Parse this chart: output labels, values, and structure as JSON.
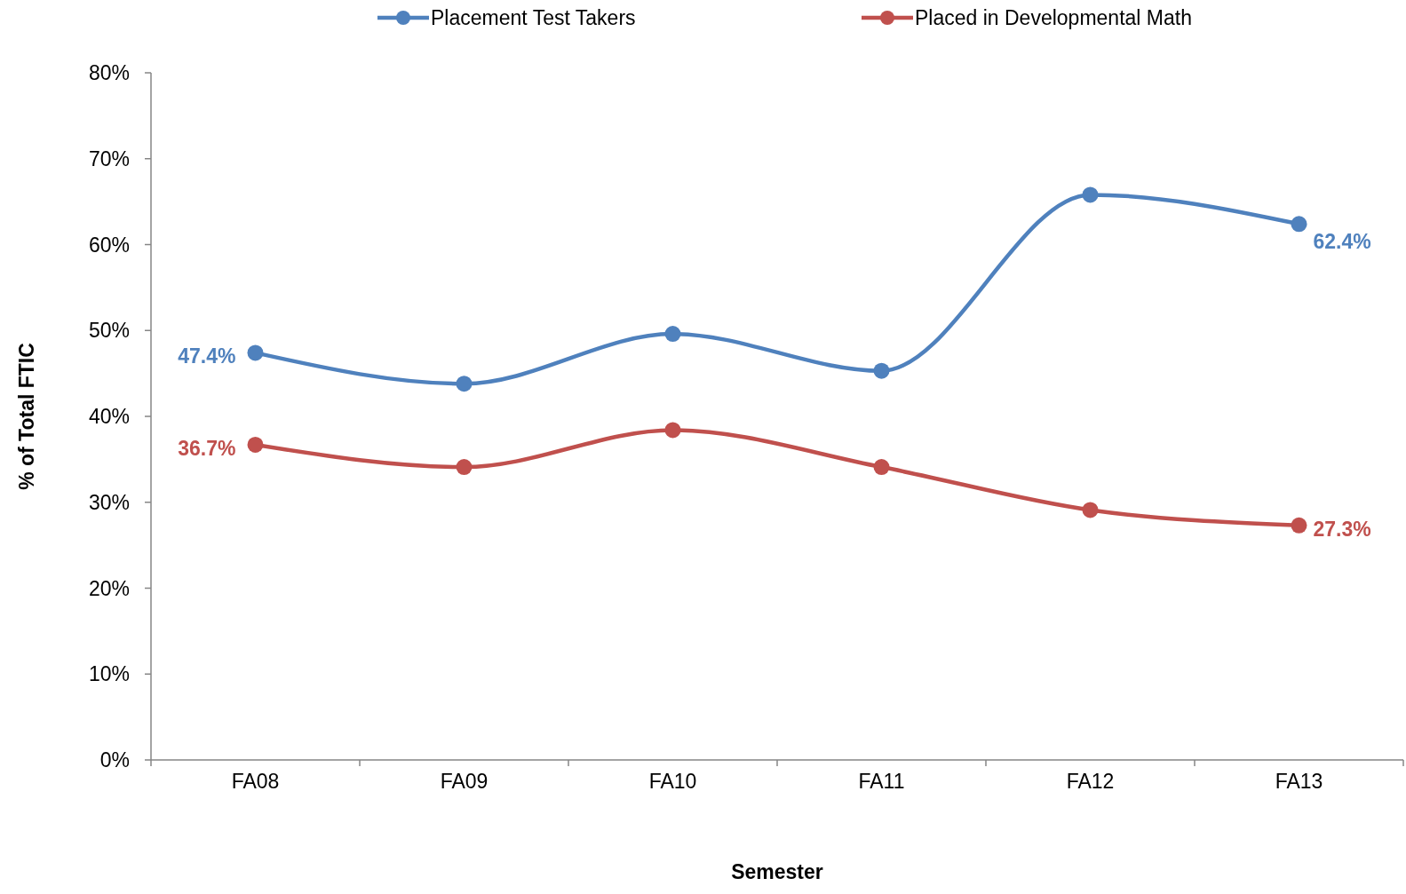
{
  "chart_data": {
    "type": "line",
    "xlabel": "Semester",
    "ylabel": "% of Total FTIC",
    "categories": [
      "FA08",
      "FA09",
      "FA10",
      "FA11",
      "FA12",
      "FA13"
    ],
    "series": [
      {
        "name": "Placement Test Takers",
        "color": "#4f81bd",
        "values": [
          47.4,
          43.8,
          49.6,
          45.3,
          65.8,
          62.4
        ],
        "value_labels": [
          "47.4%",
          null,
          null,
          null,
          null,
          "62.4%"
        ]
      },
      {
        "name": "Placed in Developmental Math",
        "color": "#c0504d",
        "values": [
          36.7,
          34.1,
          38.4,
          34.1,
          29.1,
          27.3
        ],
        "value_labels": [
          "36.7%",
          null,
          null,
          null,
          null,
          "27.3%"
        ]
      }
    ],
    "ylim": [
      0,
      80
    ],
    "yticks": [
      {
        "value": 0,
        "label": "0%"
      },
      {
        "value": 10,
        "label": "10%"
      },
      {
        "value": 20,
        "label": "20%"
      },
      {
        "value": 30,
        "label": "30%"
      },
      {
        "value": 40,
        "label": "40%"
      },
      {
        "value": 50,
        "label": "50%"
      },
      {
        "value": 60,
        "label": "60%"
      },
      {
        "value": 70,
        "label": "70%"
      },
      {
        "value": 80,
        "label": "80%"
      }
    ],
    "grid": false,
    "legend": "top",
    "marker": "circle",
    "line_style": "solid"
  }
}
